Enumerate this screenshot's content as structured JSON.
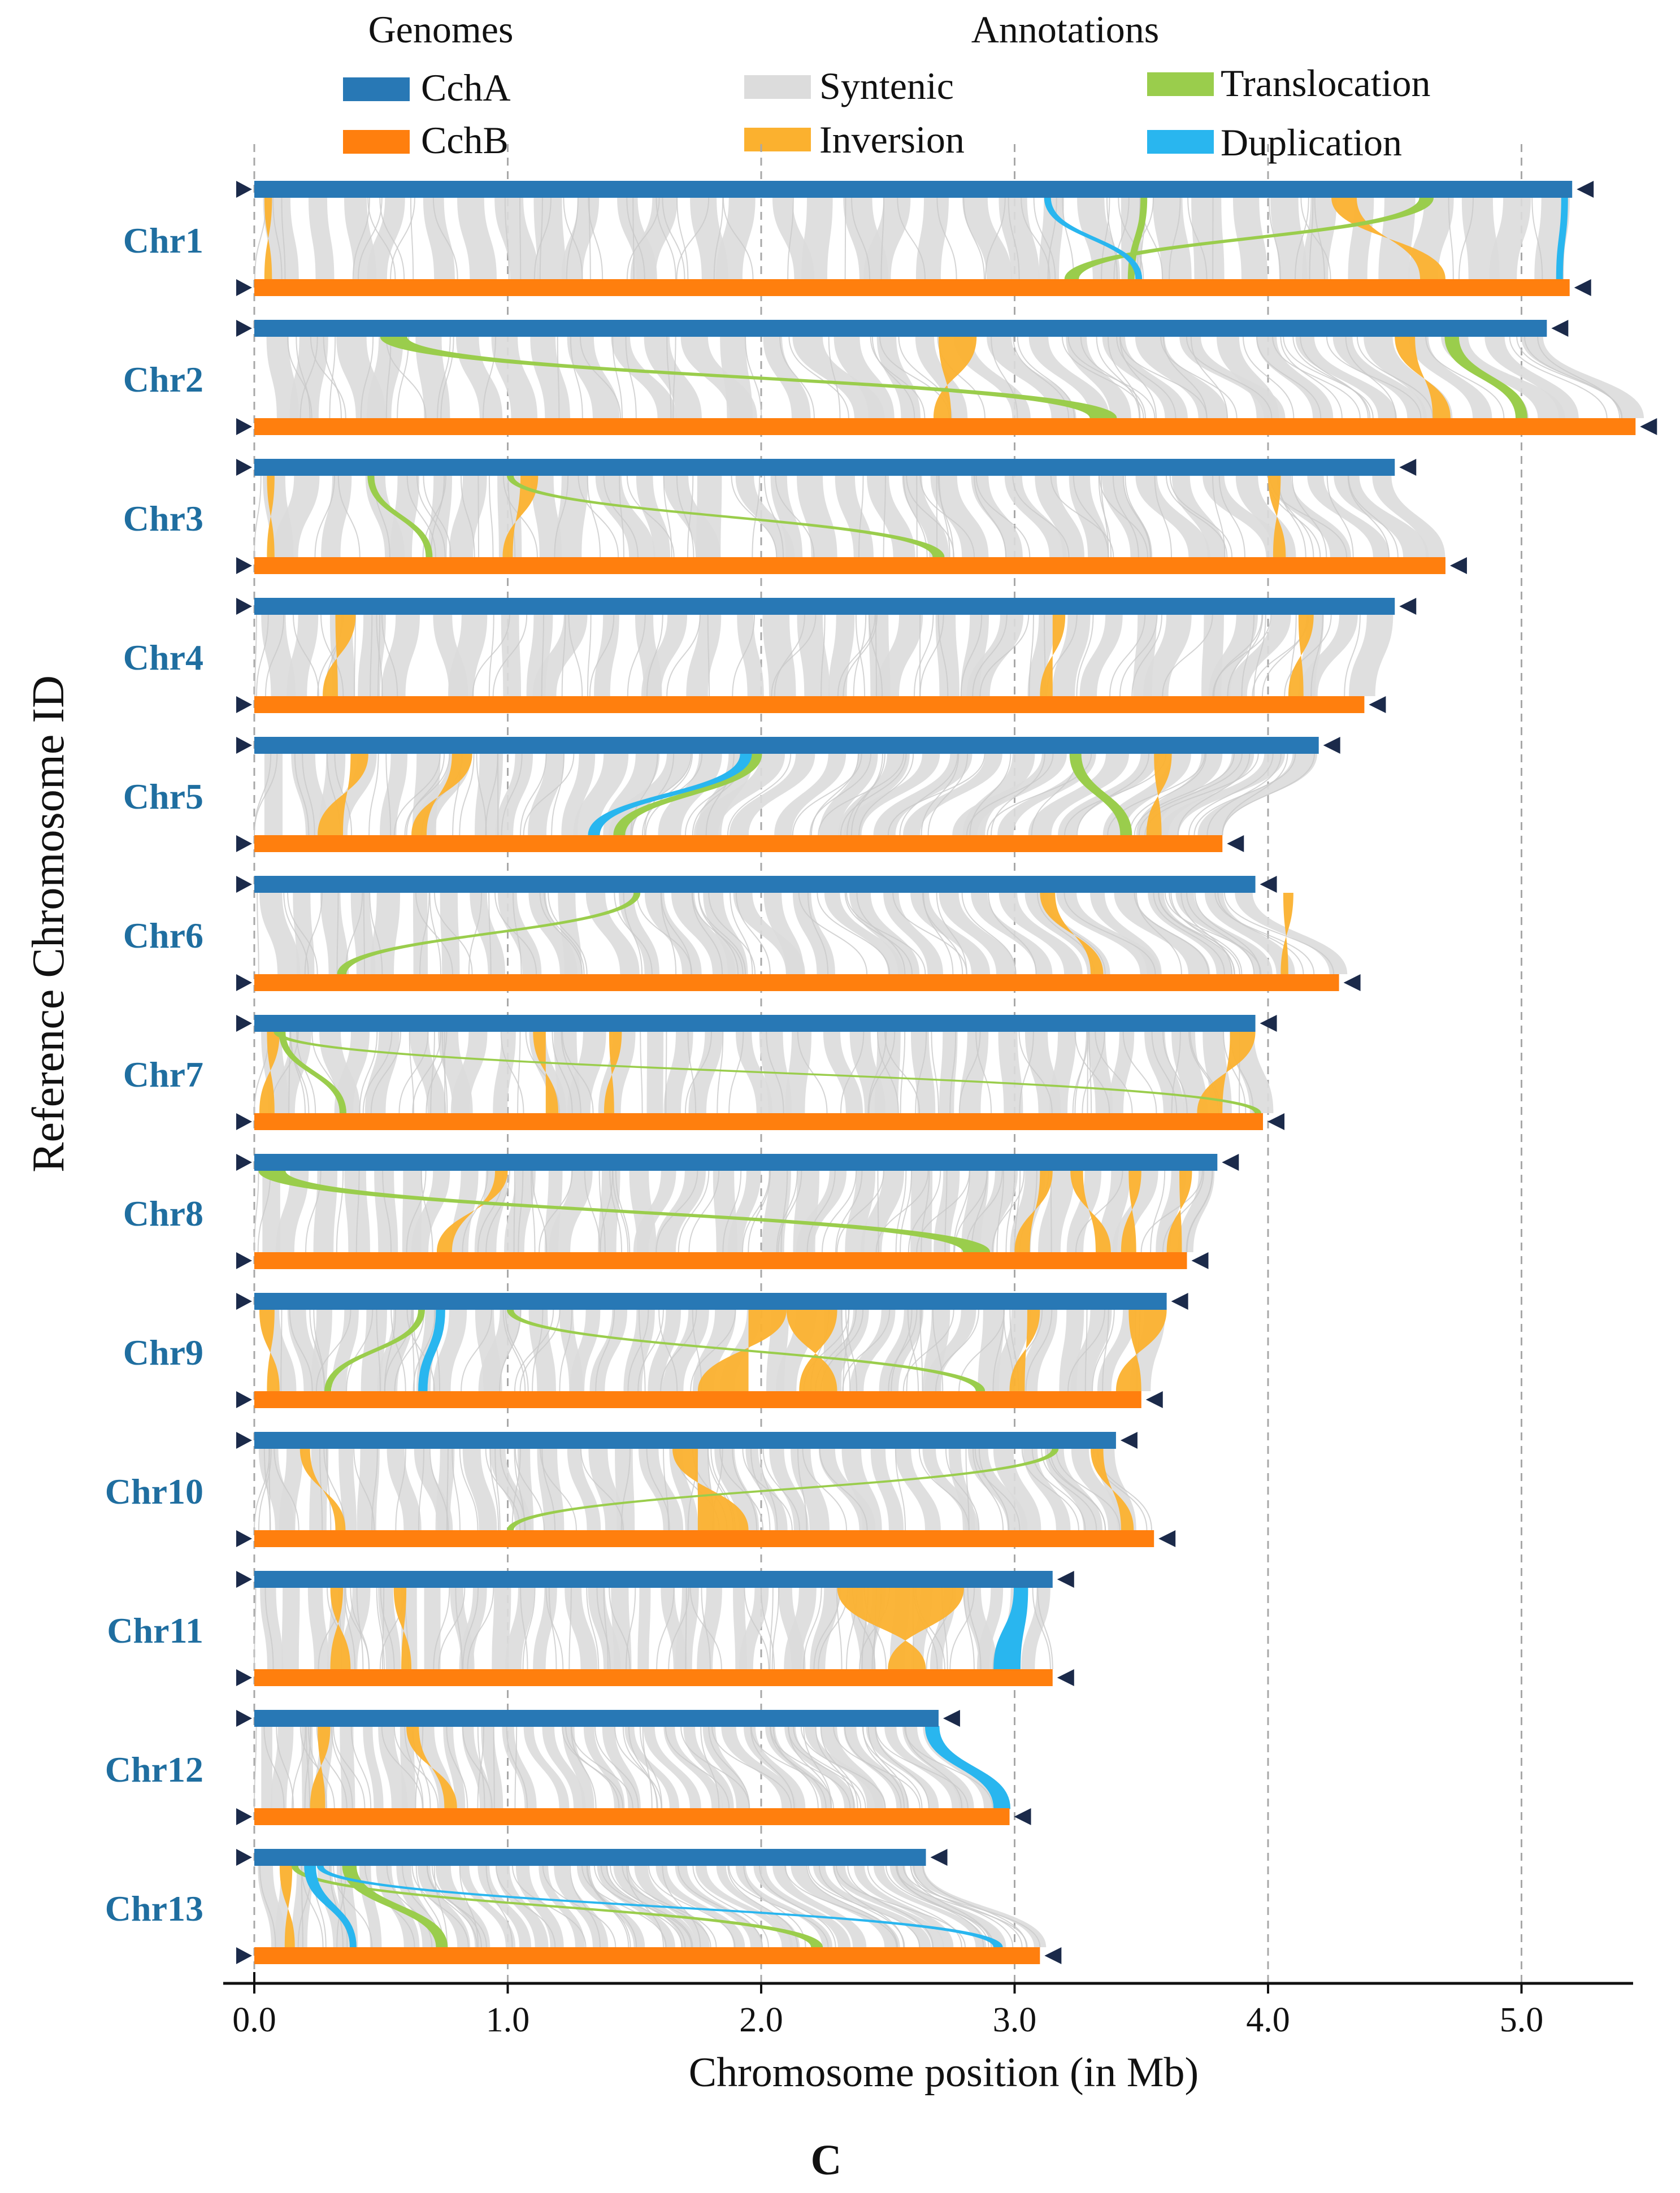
{
  "colors": {
    "cchA": "#2878b5",
    "cchB": "#ff7f0e",
    "syntenic": "#dcdcdc",
    "inversion": "#fbb12f",
    "translocation": "#9acd4c",
    "duplication": "#29b6ef",
    "chrLabel": "#1f6ea0",
    "marker": "#1b2a4a",
    "grid": "#a8a8a8",
    "text": "#111111"
  },
  "chart_data": {
    "type": "synteny",
    "title": "",
    "xlabel": "Chromosome position (in Mb)",
    "ylabel": "Reference Chromosome ID",
    "caption": "C",
    "xlim": [
      0,
      5.45
    ],
    "x_ticks": [
      0.0,
      1.0,
      2.0,
      3.0,
      4.0,
      5.0
    ],
    "x_tick_labels": [
      "0.0",
      "1.0",
      "2.0",
      "3.0",
      "4.0",
      "5.0"
    ],
    "legend": {
      "genomes_title": "Genomes",
      "annotations_title": "Annotations",
      "genomes": [
        {
          "key": "cchA",
          "label": "CchA"
        },
        {
          "key": "cchB",
          "label": "CchB"
        }
      ],
      "annotations": [
        {
          "key": "syntenic",
          "label": "Syntenic"
        },
        {
          "key": "inversion",
          "label": "Inversion"
        },
        {
          "key": "translocation",
          "label": "Translocation"
        },
        {
          "key": "duplication",
          "label": "Duplication"
        }
      ]
    },
    "chromosomes": [
      {
        "name": "Chr1",
        "lenA": 5.2,
        "lenB": 5.19,
        "inversions": [
          [
            0.04,
            0.07,
            0.04,
            0.07
          ],
          [
            4.25,
            4.35,
            4.6,
            4.7
          ]
        ],
        "translocations": [
          [
            3.5,
            3.52,
            3.45,
            3.47
          ],
          [
            4.6,
            4.65,
            3.2,
            3.25
          ]
        ],
        "duplications": [
          [
            3.12,
            3.14,
            3.48,
            3.5
          ],
          [
            5.16,
            5.18,
            5.14,
            5.16
          ]
        ]
      },
      {
        "name": "Chr2",
        "lenA": 5.1,
        "lenB": 5.45,
        "inversions": [
          [
            2.7,
            2.85,
            2.68,
            2.75
          ],
          [
            4.5,
            4.58,
            4.65,
            4.72
          ]
        ],
        "translocations": [
          [
            0.5,
            0.6,
            3.3,
            3.4
          ],
          [
            4.7,
            4.75,
            4.98,
            5.02
          ]
        ],
        "duplications": []
      },
      {
        "name": "Chr3",
        "lenA": 4.5,
        "lenB": 4.7,
        "inversions": [
          [
            0.05,
            0.08,
            0.05,
            0.08
          ],
          [
            1.05,
            1.12,
            0.98,
            1.02
          ],
          [
            4.0,
            4.05,
            4.02,
            4.07
          ]
        ],
        "translocations": [
          [
            0.45,
            0.47,
            0.68,
            0.7
          ],
          [
            1.0,
            1.02,
            2.68,
            2.72
          ]
        ],
        "duplications": []
      },
      {
        "name": "Chr4",
        "lenA": 4.5,
        "lenB": 4.38,
        "inversions": [
          [
            0.32,
            0.4,
            0.27,
            0.33
          ],
          [
            3.15,
            3.2,
            3.1,
            3.15
          ],
          [
            4.12,
            4.18,
            4.08,
            4.14
          ]
        ],
        "translocations": [],
        "duplications": []
      },
      {
        "name": "Chr5",
        "lenA": 4.2,
        "lenB": 3.82,
        "inversions": [
          [
            0.38,
            0.45,
            0.25,
            0.35
          ],
          [
            0.78,
            0.86,
            0.62,
            0.68
          ],
          [
            3.55,
            3.62,
            3.52,
            3.58
          ]
        ],
        "translocations": [
          [
            1.95,
            2.0,
            1.42,
            1.46
          ],
          [
            3.22,
            3.26,
            3.42,
            3.46
          ]
        ],
        "duplications": [
          [
            1.92,
            1.96,
            1.32,
            1.36
          ]
        ]
      },
      {
        "name": "Chr6",
        "lenA": 3.95,
        "lenB": 4.28,
        "inversions": [
          [
            3.1,
            3.16,
            3.3,
            3.35
          ],
          [
            4.06,
            4.1,
            4.05,
            4.08
          ]
        ],
        "translocations": [
          [
            1.5,
            1.52,
            0.33,
            0.36
          ]
        ],
        "duplications": []
      },
      {
        "name": "Chr7",
        "lenA": 3.95,
        "lenB": 3.98,
        "inversions": [
          [
            0.05,
            0.1,
            0.02,
            0.08
          ],
          [
            1.1,
            1.15,
            1.15,
            1.2
          ],
          [
            1.4,
            1.45,
            1.38,
            1.42
          ],
          [
            3.85,
            3.95,
            3.72,
            3.82
          ]
        ],
        "translocations": [
          [
            0.08,
            0.1,
            3.95,
            3.97
          ],
          [
            0.1,
            0.12,
            0.34,
            0.36
          ]
        ],
        "duplications": []
      },
      {
        "name": "Chr8",
        "lenA": 3.8,
        "lenB": 3.68,
        "inversions": [
          [
            0.95,
            1.0,
            0.72,
            0.78
          ],
          [
            3.1,
            3.15,
            3.0,
            3.06
          ],
          [
            3.22,
            3.27,
            3.32,
            3.38
          ],
          [
            3.45,
            3.5,
            3.42,
            3.48
          ],
          [
            3.65,
            3.7,
            3.6,
            3.66
          ]
        ],
        "translocations": [
          [
            0.02,
            0.12,
            2.8,
            2.9
          ]
        ],
        "duplications": []
      },
      {
        "name": "Chr9",
        "lenA": 3.6,
        "lenB": 3.5,
        "inversions": [
          [
            0.02,
            0.08,
            0.05,
            0.1
          ],
          [
            1.95,
            2.1,
            1.75,
            1.95
          ],
          [
            2.1,
            2.3,
            2.15,
            2.3
          ],
          [
            3.05,
            3.1,
            2.98,
            3.04
          ],
          [
            3.45,
            3.6,
            3.4,
            3.5
          ]
        ],
        "translocations": [
          [
            0.65,
            0.67,
            0.28,
            0.3
          ],
          [
            1.0,
            1.02,
            2.85,
            2.88
          ]
        ],
        "duplications": [
          [
            0.72,
            0.75,
            0.65,
            0.68
          ]
        ]
      },
      {
        "name": "Chr10",
        "lenA": 3.4,
        "lenB": 3.55,
        "inversions": [
          [
            0.18,
            0.22,
            0.32,
            0.36
          ],
          [
            1.65,
            1.75,
            1.75,
            1.95
          ],
          [
            3.3,
            3.35,
            3.42,
            3.47
          ]
        ],
        "translocations": [
          [
            3.15,
            3.17,
            1.0,
            1.02
          ]
        ],
        "duplications": []
      },
      {
        "name": "Chr11",
        "lenA": 3.15,
        "lenB": 3.15,
        "inversions": [
          [
            0.3,
            0.35,
            0.3,
            0.38
          ],
          [
            0.55,
            0.6,
            0.58,
            0.62
          ],
          [
            2.3,
            2.8,
            2.5,
            2.65
          ]
        ],
        "translocations": [],
        "duplications": [
          [
            3.0,
            3.05,
            2.92,
            3.02
          ]
        ]
      },
      {
        "name": "Chr12",
        "lenA": 2.7,
        "lenB": 2.98,
        "inversions": [
          [
            0.25,
            0.3,
            0.22,
            0.28
          ],
          [
            0.6,
            0.65,
            0.75,
            0.8
          ]
        ],
        "translocations": [],
        "duplications": [
          [
            2.65,
            2.7,
            2.92,
            2.98
          ]
        ]
      },
      {
        "name": "Chr13",
        "lenA": 2.65,
        "lenB": 3.1,
        "inversions": [
          [
            0.1,
            0.15,
            0.12,
            0.16
          ]
        ],
        "translocations": [
          [
            0.35,
            0.4,
            0.72,
            0.76
          ],
          [
            0.15,
            0.17,
            2.2,
            2.24
          ]
        ],
        "duplications": [
          [
            0.2,
            0.24,
            0.38,
            0.4
          ],
          [
            0.25,
            0.27,
            2.92,
            2.95
          ]
        ]
      }
    ]
  }
}
